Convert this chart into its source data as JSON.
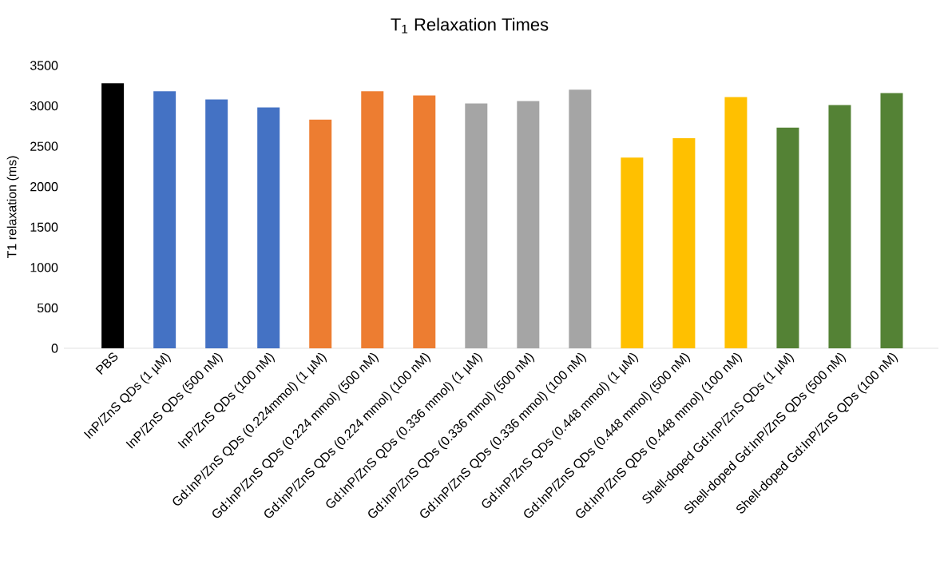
{
  "chart_data": {
    "type": "bar",
    "title": "T$_{1}$ Relaxation Times",
    "ylabel": "T1 relaxation (ms)",
    "categories": [
      "PBS",
      "InP/ZnS QDs (1 µM)",
      "InP/ZnS QDs (500 nM)",
      "InP/ZnS QDs (100 nM)",
      "Gd:InP/ZnS QDs (0.224mmol) (1 µM)",
      "Gd:InP/ZnS QDs (0.224 mmol) (500 nM)",
      "Gd:InP/ZnS QDs (0.224 mmol) (100 nM)",
      "Gd:InP/ZnS QDs (0.336 mmol) (1 µM)",
      "Gd:InP/ZnS QDs (0.336 mmol) (500 nM)",
      "Gd:InP/ZnS QDs (0.336 mmol) (100 nM)",
      "Gd:InP/ZnS QDs (0.448 mmol) (1 µM)",
      "Gd:InP/ZnS QDs (0.448 mmol) (500 nM)",
      "Gd:InP/ZnS QDs (0.448 mmol) (100 nM)",
      "Shell-doped Gd:InP/ZnS QDs (1 µM)",
      "Shell-doped Gd:InP/ZnS QDs (500 nM)",
      "Shell-doped Gd:InP/ZnS QDs (100 nM)"
    ],
    "values": [
      3280,
      3180,
      3080,
      2980,
      2830,
      3180,
      3130,
      3030,
      3060,
      3200,
      2360,
      2600,
      3110,
      2730,
      3010,
      3160
    ],
    "colors": [
      "#000000",
      "#4472c4",
      "#4472c4",
      "#4472c4",
      "#ed7d31",
      "#ed7d31",
      "#ed7d31",
      "#a5a5a5",
      "#a5a5a5",
      "#a5a5a5",
      "#ffc000",
      "#ffc000",
      "#ffc000",
      "#548235",
      "#548235",
      "#548235"
    ],
    "ylim": [
      0,
      3500
    ],
    "yticks": [
      0,
      500,
      1000,
      1500,
      2000,
      2500,
      3000,
      3500
    ]
  }
}
